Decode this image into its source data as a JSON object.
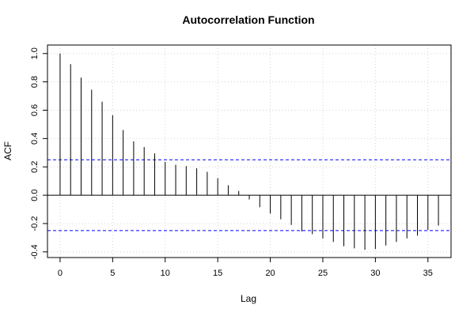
{
  "chart_data": {
    "type": "bar",
    "title": "Autocorrelation Function",
    "xlabel": "Lag",
    "ylabel": "ACF",
    "xlim": [
      -1.2,
      37.2
    ],
    "ylim": [
      -0.44,
      1.06
    ],
    "x_ticks": [
      0,
      5,
      10,
      15,
      20,
      25,
      30,
      35
    ],
    "y_ticks": [
      -0.4,
      -0.2,
      0.0,
      0.2,
      0.4,
      0.6,
      0.8,
      1.0
    ],
    "y_tick_labels": [
      "-0.4",
      "-0.2",
      "0.0",
      "0.2",
      "0.4",
      "0.6",
      "0.8",
      "1.0"
    ],
    "grid": true,
    "confidence_bounds": [
      0.25,
      -0.25
    ],
    "colors": {
      "bars": "#000000",
      "zero_line": "#000000",
      "bounds": "#0000ff",
      "grid": "#d3d3d3"
    },
    "series": [
      {
        "lags": [
          0,
          1,
          2,
          3,
          4,
          5,
          6,
          7,
          8,
          9,
          10,
          11,
          12,
          13,
          14,
          15,
          16,
          17,
          18,
          19,
          20,
          21,
          22,
          23,
          24,
          25,
          26,
          27,
          28,
          29,
          30,
          31,
          32,
          33,
          34,
          35,
          36
        ],
        "values": [
          1.0,
          0.925,
          0.83,
          0.745,
          0.66,
          0.565,
          0.46,
          0.38,
          0.34,
          0.295,
          0.235,
          0.215,
          0.205,
          0.19,
          0.165,
          0.12,
          0.07,
          0.03,
          -0.03,
          -0.085,
          -0.13,
          -0.17,
          -0.21,
          -0.255,
          -0.275,
          -0.305,
          -0.33,
          -0.36,
          -0.375,
          -0.385,
          -0.38,
          -0.355,
          -0.33,
          -0.305,
          -0.285,
          -0.245,
          -0.215
        ]
      }
    ]
  }
}
